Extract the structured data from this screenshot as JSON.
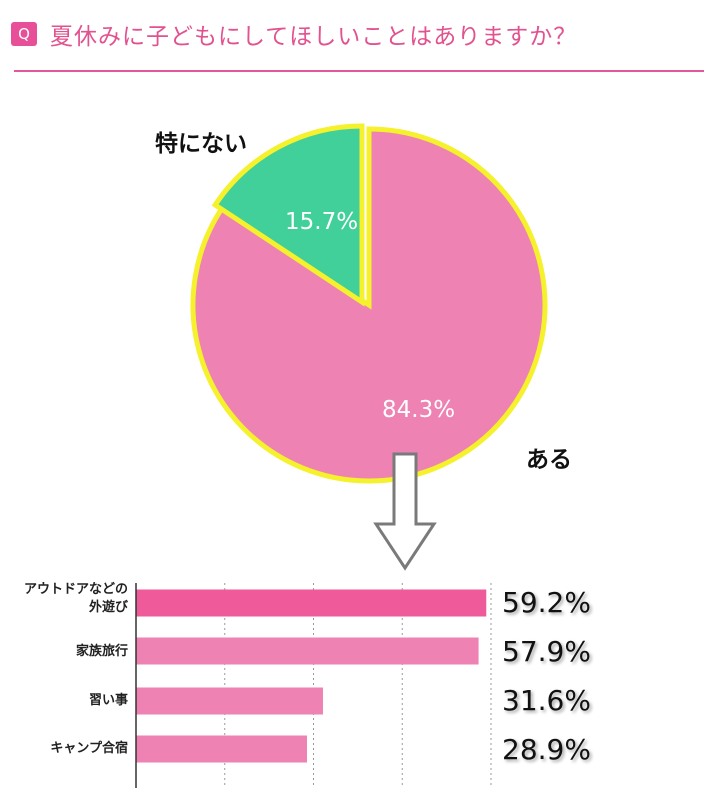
{
  "header": {
    "badge": "Q",
    "title": "夏休みに子どもにしてほしいことはありますか？"
  },
  "colors": {
    "accent": "#e74f98",
    "pie_yes": "#ee82b3",
    "pie_no": "#41cf9a",
    "pie_outline": "#f5f12c",
    "bar_highlight": "#ef5a9b",
    "bar": "#ee82b3"
  },
  "chart_data": [
    {
      "type": "pie",
      "slices": [
        {
          "label": "ある",
          "value": 84.3,
          "value_label": "84.3%"
        },
        {
          "label": "特にない",
          "value": 15.7,
          "value_label": "15.7%"
        }
      ]
    },
    {
      "type": "bar",
      "orientation": "horizontal",
      "categories": [
        "アウトドアなどの外遊び",
        "家族旅行",
        "習い事",
        "キャンプ合宿"
      ],
      "category_lines": [
        [
          "アウトドアなどの",
          "外遊び"
        ],
        [
          "家族旅行"
        ],
        [
          "習い事"
        ],
        [
          "キャンプ合宿"
        ]
      ],
      "values": [
        59.2,
        57.9,
        31.6,
        28.9
      ],
      "value_labels": [
        "59.2%",
        "57.9%",
        "31.6%",
        "28.9%"
      ],
      "xlim": [
        0,
        60
      ],
      "grid": true
    }
  ]
}
